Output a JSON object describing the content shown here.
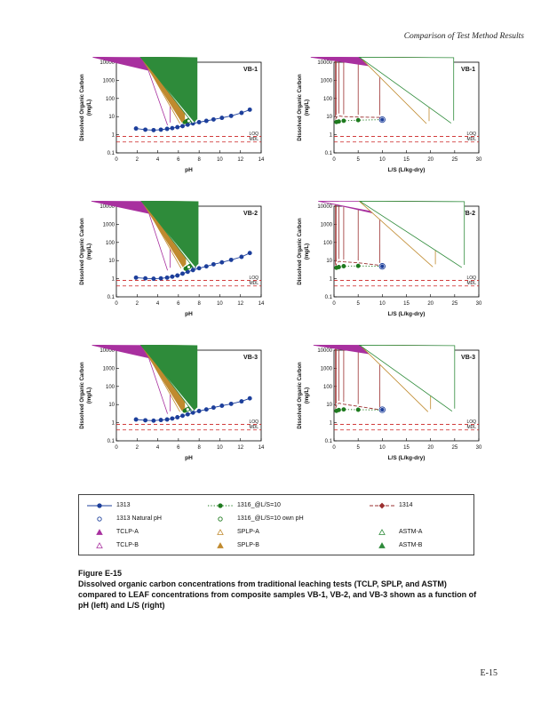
{
  "page": {
    "header": "Comparison of Test Method Results",
    "figure_label": "Figure E-15",
    "caption": "Dissolved organic carbon concentrations from traditional leaching tests (TCLP, SPLP, and ASTM) compared to LEAF concentrations from composite samples VB-1, VB-2, and VB-3 shown as a function of pH (left) and L/S (right)",
    "page_number": "E-15"
  },
  "colors": {
    "blue": "#1d3f9b",
    "green": "#1e7a1e",
    "dark_red": "#9b3030",
    "magenta": "#a8309f",
    "tan": "#c08a2e",
    "astm_green": "#2e8b3a",
    "limit_red": "#cc2222"
  },
  "series_styles": {
    "s1313": {
      "marker": "circle",
      "color": "#1d3f9b",
      "open": false,
      "line": "solid"
    },
    "s1313_natural": {
      "marker": "circle",
      "color": "#1d3f9b",
      "open": true,
      "line": "none"
    },
    "s1316": {
      "marker": "circle",
      "color": "#1e7a1e",
      "open": false,
      "line": "dotted"
    },
    "s1316_own": {
      "marker": "circle",
      "color": "#1e7a1e",
      "open": true,
      "line": "none"
    },
    "s1314": {
      "marker": "diamond",
      "color": "#9b3030",
      "open": false,
      "line": "dashed"
    },
    "tclp_a": {
      "marker": "triangle",
      "color": "#a8309f",
      "open": false,
      "line": "none"
    },
    "tclp_b": {
      "marker": "triangle",
      "color": "#a8309f",
      "open": true,
      "line": "none"
    },
    "splp_a": {
      "marker": "triangle",
      "color": "#c08a2e",
      "open": true,
      "line": "none"
    },
    "splp_b": {
      "marker": "triangle",
      "color": "#c08a2e",
      "open": false,
      "line": "none"
    },
    "astm_a": {
      "marker": "triangle",
      "color": "#2e8b3a",
      "open": true,
      "line": "none"
    },
    "astm_b": {
      "marker": "triangle",
      "color": "#2e8b3a",
      "open": false,
      "line": "none"
    }
  },
  "legend": {
    "entries": [
      {
        "label": "1313",
        "style": "s1313"
      },
      {
        "label": "1316_@L/S=10",
        "style": "s1316"
      },
      {
        "label": "1314",
        "style": "s1314"
      },
      {
        "label": "1313 Natural pH",
        "style": "s1313_natural"
      },
      {
        "label": "1316_@L/S=10 own pH",
        "style": "s1316_own"
      },
      null,
      {
        "label": "TCLP-A",
        "style": "tclp_a"
      },
      {
        "label": "SPLP-A",
        "style": "splp_a"
      },
      {
        "label": "ASTM-A",
        "style": "astm_a"
      },
      {
        "label": "TCLP-B",
        "style": "tclp_b"
      },
      {
        "label": "SPLP-B",
        "style": "splp_b"
      },
      {
        "label": "ASTM-B",
        "style": "astm_b"
      }
    ]
  },
  "chart_data": [
    {
      "type": "scatter",
      "corner": "VB-1",
      "xlabel": "pH",
      "ylabel": [
        "Dissolved Organic Carbon",
        "(mg/L)"
      ],
      "xlim": [
        0,
        14
      ],
      "xticks": [
        0,
        2,
        4,
        6,
        8,
        10,
        12,
        14
      ],
      "ylog": true,
      "ylim": [
        0.1,
        10000
      ],
      "yticks": [
        0.1,
        1,
        10,
        100,
        1000,
        10000
      ],
      "limit_lines": [
        {
          "value": 0.8,
          "label": "LOQ"
        },
        {
          "value": 0.4,
          "label": "MDL"
        }
      ],
      "series": [
        {
          "style": "s1313",
          "x": [
            1.9,
            2.8,
            3.6,
            4.3,
            4.9,
            5.4,
            5.9,
            6.4,
            6.9,
            7.4,
            8.0,
            8.7,
            9.4,
            10.2,
            11.1,
            12.1,
            12.9
          ],
          "y": [
            2.2,
            1.9,
            1.8,
            1.9,
            2.1,
            2.3,
            2.6,
            3.0,
            3.6,
            4.2,
            4.9,
            5.8,
            7.0,
            8.5,
            11,
            16,
            24
          ]
        },
        {
          "style": "s1314",
          "line": "none",
          "x": [
            6.2,
            6.4,
            6.5,
            6.7,
            6.9,
            7.0,
            7.2,
            7.4
          ],
          "y": [
            9,
            13,
            17,
            23,
            14,
            19,
            27,
            11
          ]
        },
        {
          "style": "s1316",
          "x": [
            6.6,
            6.8,
            7.0,
            7.2
          ],
          "y": [
            5.0,
            5.7,
            6.4,
            7.2
          ]
        },
        {
          "style": "s1316_own",
          "x": [
            7.0
          ],
          "y": [
            5.8
          ]
        },
        {
          "style": "s1313_natural",
          "x": [
            7.4
          ],
          "y": [
            5.5
          ]
        },
        {
          "style": "tclp_a",
          "x": [
            4.9
          ],
          "y": [
            2200
          ]
        },
        {
          "style": "tclp_b",
          "x": [
            5.2
          ],
          "y": [
            3.4
          ]
        },
        {
          "style": "splp_a",
          "x": [
            6.4
          ],
          "y": [
            4.2
          ]
        },
        {
          "style": "splp_b",
          "x": [
            6.6
          ],
          "y": [
            4.8
          ]
        },
        {
          "style": "astm_a",
          "x": [
            7.6
          ],
          "y": [
            4.4
          ]
        },
        {
          "style": "astm_b",
          "x": [
            7.8
          ],
          "y": [
            5.1
          ]
        }
      ]
    },
    {
      "type": "scatter",
      "corner": "VB-1",
      "xlabel": "L/S (L/kg-dry)",
      "ylabel": [
        "Dissolved Organic Carbon",
        "(mg/L)"
      ],
      "xlim": [
        0,
        30
      ],
      "xticks": [
        0,
        5,
        10,
        15,
        20,
        25,
        30
      ],
      "ylog": true,
      "ylim": [
        0.1,
        10000
      ],
      "yticks": [
        0.1,
        1,
        10,
        100,
        1000,
        10000
      ],
      "limit_lines": [
        {
          "value": 0.8,
          "label": "LOQ"
        },
        {
          "value": 0.4,
          "label": "MDL"
        }
      ],
      "series": [
        {
          "style": "s1314",
          "x": [
            0.3,
            0.5,
            1,
            2,
            5,
            9.5
          ],
          "y": [
            7,
            9,
            11,
            10,
            9.5,
            9
          ]
        },
        {
          "style": "s1316",
          "x": [
            0.5,
            1,
            2,
            5,
            10
          ],
          "y": [
            5,
            5.4,
            5.9,
            6.4,
            6.8
          ]
        },
        {
          "style": "s1313_natural",
          "r": 3.2,
          "x": [
            10
          ],
          "y": [
            6.8
          ]
        },
        {
          "style": "s1313",
          "r": 1.7,
          "x": [
            10
          ],
          "y": [
            6.8
          ]
        },
        {
          "style": "tclp_a",
          "x": [
            20
          ],
          "y": [
            2100
          ]
        },
        {
          "style": "splp_a",
          "x": [
            19.7
          ],
          "y": [
            4.1
          ]
        },
        {
          "style": "astm_a",
          "x": [
            24.8
          ],
          "y": [
            4.4
          ]
        }
      ]
    },
    {
      "type": "scatter",
      "corner": "VB-2",
      "xlabel": "pH",
      "ylabel": [
        "Dissolved Organic Carbon",
        "(mg/L)"
      ],
      "xlim": [
        0,
        14
      ],
      "xticks": [
        0,
        2,
        4,
        6,
        8,
        10,
        12,
        14
      ],
      "ylog": true,
      "ylim": [
        0.1,
        10000
      ],
      "yticks": [
        0.1,
        1,
        10,
        100,
        1000,
        10000
      ],
      "limit_lines": [
        {
          "value": 0.8,
          "label": "LOQ"
        },
        {
          "value": 0.4,
          "label": "MDL"
        }
      ],
      "series": [
        {
          "style": "s1313",
          "x": [
            1.9,
            2.8,
            3.6,
            4.3,
            4.9,
            5.4,
            5.9,
            6.4,
            6.9,
            7.4,
            8.0,
            8.7,
            9.4,
            10.2,
            11.1,
            12.1,
            12.9
          ],
          "y": [
            1.15,
            1.05,
            1.0,
            1.05,
            1.15,
            1.3,
            1.5,
            1.9,
            2.4,
            3.0,
            3.8,
            4.8,
            6.2,
            8.0,
            11,
            16,
            26
          ]
        },
        {
          "style": "s1314",
          "line": "none",
          "x": [
            6.3,
            6.5,
            6.7,
            6.9,
            7.1,
            7.3
          ],
          "y": [
            8,
            12,
            18,
            25,
            15,
            10
          ]
        },
        {
          "style": "s1316",
          "x": [
            6.7,
            6.9,
            7.1,
            7.3
          ],
          "y": [
            3.6,
            4.2,
            4.9,
            5.7
          ]
        },
        {
          "style": "s1316_own",
          "x": [
            7.0
          ],
          "y": [
            4.4
          ]
        },
        {
          "style": "s1313_natural",
          "x": [
            7.5
          ],
          "y": [
            4.6
          ]
        },
        {
          "style": "tclp_a",
          "x": [
            4.9
          ],
          "y": [
            2600
          ]
        },
        {
          "style": "tclp_b",
          "x": [
            5.2
          ],
          "y": [
            2.9
          ]
        },
        {
          "style": "splp_a",
          "x": [
            6.5
          ],
          "y": [
            3.8
          ]
        },
        {
          "style": "splp_b",
          "x": [
            6.7
          ],
          "y": [
            4.4
          ]
        },
        {
          "style": "astm_a",
          "x": [
            7.7
          ],
          "y": [
            4.0
          ]
        },
        {
          "style": "astm_b",
          "x": [
            7.9
          ],
          "y": [
            4.6
          ]
        }
      ]
    },
    {
      "type": "scatter",
      "corner": "VB-2",
      "xlabel": "L/S (L/kg-dry)",
      "ylabel": [
        "Dissolved Organic Carbon",
        "(mg/L)"
      ],
      "xlim": [
        0,
        30
      ],
      "xticks": [
        0,
        5,
        10,
        15,
        20,
        25,
        30
      ],
      "ylog": true,
      "ylim": [
        0.1,
        10000
      ],
      "yticks": [
        0.1,
        1,
        10,
        100,
        1000,
        10000
      ],
      "limit_lines": [
        {
          "value": 0.8,
          "label": "LOQ"
        },
        {
          "value": 0.4,
          "label": "MDL"
        }
      ],
      "series": [
        {
          "style": "s1314",
          "x": [
            0.3,
            0.5,
            1,
            2,
            5,
            9.5
          ],
          "y": [
            4.5,
            6.5,
            9,
            8.5,
            7.5,
            5.5
          ]
        },
        {
          "style": "s1316",
          "x": [
            0.5,
            1,
            2,
            5,
            10
          ],
          "y": [
            4.0,
            4.4,
            4.9,
            5.1,
            4.8
          ]
        },
        {
          "style": "s1313_natural",
          "r": 3.2,
          "x": [
            10
          ],
          "y": [
            4.8
          ]
        },
        {
          "style": "s1313",
          "r": 1.7,
          "x": [
            10
          ],
          "y": [
            4.8
          ]
        },
        {
          "style": "tclp_a",
          "x": [
            22
          ],
          "y": [
            650
          ]
        },
        {
          "style": "tclp_b",
          "x": [
            23.8
          ],
          "y": [
            820
          ]
        },
        {
          "style": "splp_a",
          "x": [
            21
          ],
          "y": [
            4.5
          ]
        },
        {
          "style": "astm_a",
          "x": [
            27
          ],
          "y": [
            4.2
          ]
        }
      ]
    },
    {
      "type": "scatter",
      "corner": "VB-3",
      "xlabel": "pH",
      "ylabel": [
        "Dissolved Organic Carbon",
        "(mg/L)"
      ],
      "xlim": [
        0,
        14
      ],
      "xticks": [
        0,
        2,
        4,
        6,
        8,
        10,
        12,
        14
      ],
      "ylog": true,
      "ylim": [
        0.1,
        10000
      ],
      "yticks": [
        0.1,
        1,
        10,
        100,
        1000,
        10000
      ],
      "limit_lines": [
        {
          "value": 0.8,
          "label": "LOQ"
        },
        {
          "value": 0.4,
          "label": "MDL"
        }
      ],
      "series": [
        {
          "style": "s1313",
          "x": [
            1.9,
            2.8,
            3.6,
            4.3,
            4.9,
            5.4,
            5.9,
            6.4,
            6.9,
            7.4,
            8.0,
            8.7,
            9.4,
            10.2,
            11.1,
            12.1,
            12.9
          ],
          "y": [
            1.5,
            1.35,
            1.3,
            1.4,
            1.5,
            1.7,
            2.0,
            2.4,
            2.9,
            3.6,
            4.4,
            5.4,
            6.8,
            8.6,
            11,
            15,
            22
          ]
        },
        {
          "style": "s1314",
          "line": "none",
          "x": [
            6.2,
            6.4,
            6.6,
            6.8,
            7.0,
            7.2
          ],
          "y": [
            10,
            15,
            22,
            29,
            16,
            12
          ]
        },
        {
          "style": "s1316",
          "x": [
            6.6,
            6.8,
            7.0,
            7.2
          ],
          "y": [
            4.6,
            5.2,
            5.9,
            6.7
          ]
        },
        {
          "style": "s1316_own",
          "x": [
            6.9
          ],
          "y": [
            5.4
          ]
        },
        {
          "style": "s1313_natural",
          "x": [
            7.3
          ],
          "y": [
            5.0
          ]
        },
        {
          "style": "tclp_a",
          "x": [
            4.9
          ],
          "y": [
            2400
          ]
        },
        {
          "style": "tclp_b",
          "x": [
            5.2
          ],
          "y": [
            3.1
          ]
        },
        {
          "style": "splp_a",
          "x": [
            6.4
          ],
          "y": [
            4.0
          ]
        },
        {
          "style": "splp_b",
          "x": [
            6.6
          ],
          "y": [
            4.6
          ]
        },
        {
          "style": "astm_a",
          "x": [
            7.6
          ],
          "y": [
            4.2
          ]
        },
        {
          "style": "astm_b",
          "x": [
            7.8
          ],
          "y": [
            4.9
          ]
        }
      ]
    },
    {
      "type": "scatter",
      "corner": "VB-3",
      "xlabel": "L/S (L/kg-dry)",
      "ylabel": [
        "Dissolved Organic Carbon",
        "(mg/L)"
      ],
      "xlim": [
        0,
        30
      ],
      "xticks": [
        0,
        5,
        10,
        15,
        20,
        25,
        30
      ],
      "ylog": true,
      "ylim": [
        0.1,
        10000
      ],
      "yticks": [
        0.1,
        1,
        10,
        100,
        1000,
        10000
      ],
      "limit_lines": [
        {
          "value": 0.8,
          "label": "LOQ"
        },
        {
          "value": 0.4,
          "label": "MDL"
        }
      ],
      "series": [
        {
          "style": "s1314",
          "x": [
            0.3,
            0.5,
            1,
            2,
            5,
            9.5
          ],
          "y": [
            6,
            8.5,
            12,
            10.5,
            8,
            5.2
          ]
        },
        {
          "style": "s1316",
          "x": [
            0.5,
            1,
            2,
            5,
            10
          ],
          "y": [
            4.5,
            5.0,
            5.4,
            5.2,
            5.0
          ]
        },
        {
          "style": "s1313_natural",
          "r": 3.2,
          "x": [
            10
          ],
          "y": [
            5.2
          ]
        },
        {
          "style": "s1313",
          "r": 1.7,
          "x": [
            10
          ],
          "y": [
            5.2
          ]
        },
        {
          "style": "tclp_a",
          "x": [
            23
          ],
          "y": [
            1500
          ]
        },
        {
          "style": "splp_a",
          "x": [
            20
          ],
          "y": [
            4.0
          ]
        },
        {
          "style": "astm_a",
          "x": [
            25
          ],
          "y": [
            4.3
          ]
        }
      ]
    }
  ]
}
